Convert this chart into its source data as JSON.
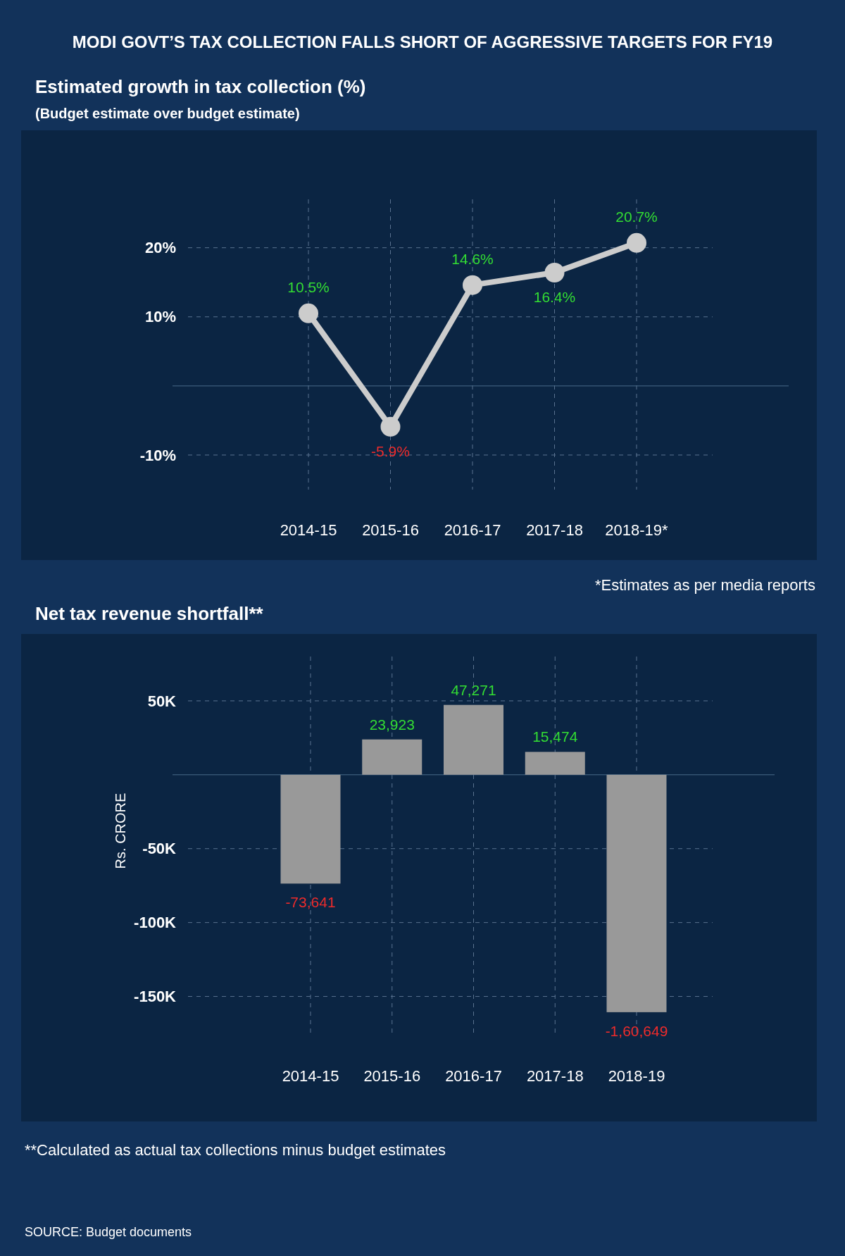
{
  "chart_data": [
    {
      "type": "line",
      "title": "MODI GOVT’S TAX COLLECTION FALLS SHORT OF AGGRESSIVE TARGETS FOR FY19",
      "subtitle": "Estimated growth in tax collection (%)",
      "annotations": [
        "(Budget estimate over budget estimate)",
        "*Estimates as per media reports"
      ],
      "categories": [
        "2014-15",
        "2015-16",
        "2016-17",
        "2017-18",
        "2018-19*"
      ],
      "series": [
        {
          "color": "#cccccc",
          "values": [
            10.5,
            -5.9,
            14.6,
            16.4,
            20.7
          ],
          "value_labels": [
            "10.5%",
            "-5.9%",
            "14.6%",
            "16.4%",
            "20.7%"
          ]
        }
      ],
      "ylim": [
        -15,
        27
      ],
      "yticks": [
        {
          "value": -10,
          "label": "-10%"
        },
        {
          "value": 10,
          "label": "10%"
        },
        {
          "value": 20,
          "label": "20%"
        }
      ],
      "grid": true,
      "marker": "circle",
      "ref_lines": [
        {
          "axis": "y",
          "value": 0,
          "color": "#4a6a8a"
        }
      ]
    },
    {
      "type": "bar",
      "title": "Net tax revenue shortfall**",
      "ylabel": "Rs. CRORE",
      "annotations": [
        "**Calculated as actual tax collections minus budget estimates",
        "SOURCE: Budget documents"
      ],
      "categories": [
        "2014-15",
        "2015-16",
        "2016-17",
        "2017-18",
        "2018-19"
      ],
      "series": [
        {
          "color": "#999999",
          "values": [
            -73641,
            23923,
            47271,
            15474,
            -160649
          ],
          "value_labels": [
            "-73,641",
            "23,923",
            "47,271",
            "15,474",
            "-1,60,649"
          ]
        }
      ],
      "ylim": [
        -175000,
        80000
      ],
      "yticks": [
        {
          "value": -150000,
          "label": "-150K"
        },
        {
          "value": -100000,
          "label": "-100K"
        },
        {
          "value": -50000,
          "label": "-50K"
        },
        {
          "value": 50000,
          "label": "50K"
        }
      ],
      "grid": true,
      "ref_lines": [
        {
          "axis": "y",
          "value": 0,
          "color": "#4a6a8a"
        }
      ]
    }
  ]
}
